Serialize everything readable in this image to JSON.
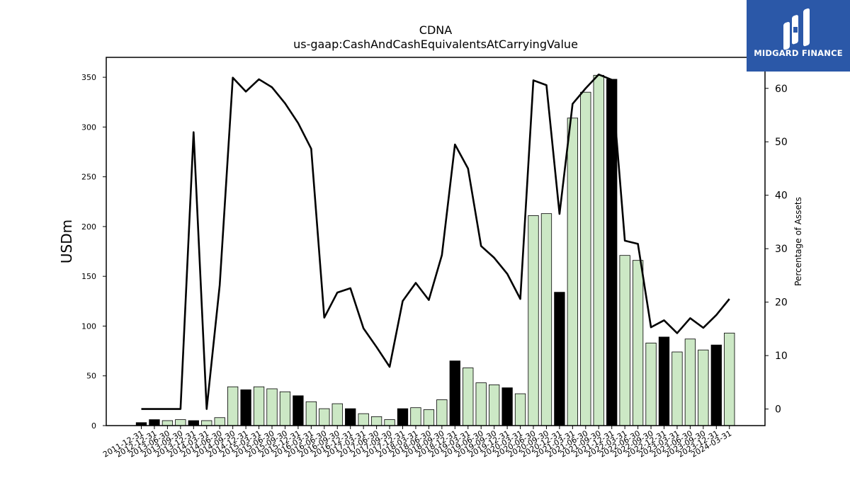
{
  "chart_data": {
    "type": "bar",
    "title": "CDNA",
    "subtitle": "us-gaap:CashAndCashEquivalentsAtCarryingValue",
    "xlabel": "",
    "ylabel": "USDm",
    "y2label": "Percentage of Assets",
    "ylim": [
      0,
      370
    ],
    "y2lim": [
      -3.1,
      65.8
    ],
    "yticks": [
      0,
      50,
      100,
      150,
      200,
      250,
      300,
      350
    ],
    "y2ticks": [
      0,
      10,
      20,
      30,
      40,
      50,
      60
    ],
    "grid": false,
    "categories": [
      "2011-12-31",
      "2012-12-31",
      "2013-06-30",
      "2013-09-30",
      "2013-12-31",
      "2014-03-31",
      "2014-06-30",
      "2014-09-30",
      "2014-12-31",
      "2015-03-31",
      "2015-06-30",
      "2015-09-30",
      "2015-12-31",
      "2016-03-31",
      "2016-06-30",
      "2016-09-30",
      "2016-12-31",
      "2017-03-31",
      "2017-06-30",
      "2017-09-30",
      "2017-12-31",
      "2018-03-31",
      "2018-06-30",
      "2018-09-30",
      "2018-12-31",
      "2019-03-31",
      "2019-06-30",
      "2019-09-30",
      "2019-12-31",
      "2020-03-31",
      "2020-06-30",
      "2020-09-30",
      "2020-12-31",
      "2021-03-31",
      "2021-06-30",
      "2021-09-30",
      "2021-12-31",
      "2022-03-31",
      "2022-06-30",
      "2022-09-30",
      "2022-12-31",
      "2023-03-31",
      "2023-06-30",
      "2023-09-30",
      "2023-12-31",
      "2024-03-31"
    ],
    "series": [
      {
        "name": "",
        "kind": "bar",
        "values": [
          3,
          6,
          5,
          6,
          5,
          5,
          8,
          39,
          36,
          39,
          37,
          34,
          30,
          24,
          17,
          22,
          17,
          12,
          9,
          6,
          17,
          18,
          16,
          26,
          65,
          58,
          43,
          41,
          38,
          32,
          211,
          213,
          134,
          309,
          335,
          352,
          348,
          171,
          166,
          83,
          89,
          74,
          87,
          76,
          81,
          93
        ]
      },
      {
        "name": "",
        "kind": "line",
        "axis": "right",
        "values": [
          0,
          0,
          0,
          0,
          51.8,
          0,
          23.2,
          62.0,
          59.4,
          61.7,
          60.2,
          57.2,
          53.5,
          48.7,
          17.1,
          21.8,
          22.6,
          15.1,
          11.6,
          7.9,
          20.2,
          23.6,
          20.4,
          28.8,
          49.5,
          45.0,
          30.5,
          28.3,
          25.3,
          20.6,
          61.5,
          60.6,
          36.5,
          57.1,
          60.0,
          62.6,
          61.6,
          31.5,
          30.9,
          15.3,
          16.6,
          14.2,
          17.0,
          15.2,
          17.6,
          20.6
        ]
      }
    ],
    "bar_colors": {
      "year_end": "#000000",
      "quarter": "#cce8c5",
      "edge": "#000000",
      "line": "#000000"
    }
  },
  "logo": {
    "text": "MIDGARD FINANCE",
    "background": "#2b58a8"
  }
}
